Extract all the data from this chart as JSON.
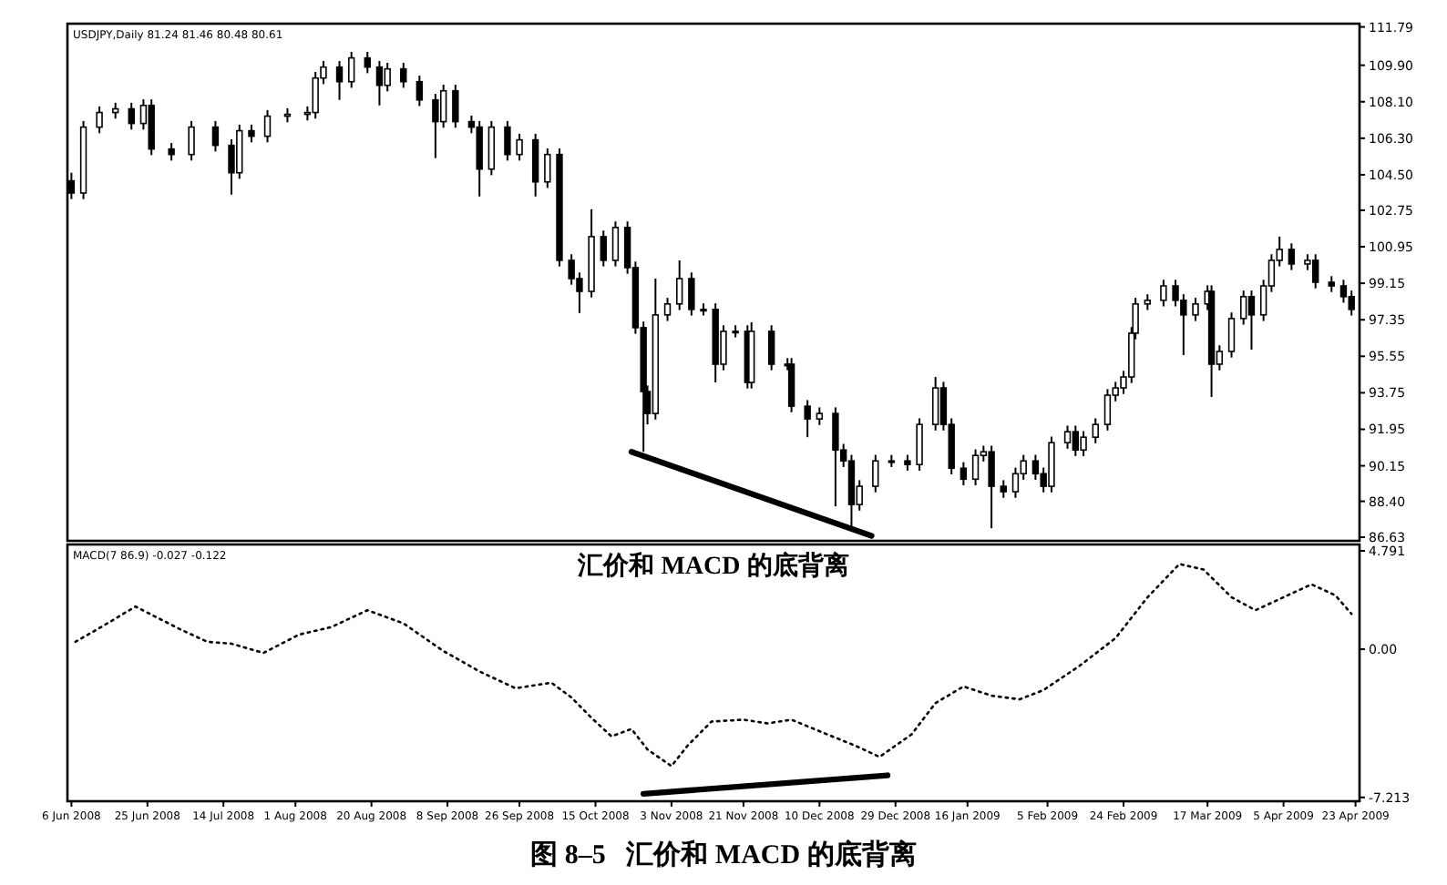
{
  "chart_data": [
    {
      "type": "candlestick",
      "color": "#000000",
      "tick_labels": "y",
      "grid": false,
      "xlim": [
        "2008-06-05",
        "2009-04-24"
      ],
      "ylim": [
        86.45,
        111.95
      ],
      "yticks": [
        111.79,
        {
          "value": 109.9,
          "label": "109.90"
        },
        {
          "value": 108.1,
          "label": "108.10"
        },
        {
          "value": 106.3,
          "label": "106.30"
        },
        {
          "value": 104.5,
          "label": "104.50"
        },
        102.75,
        100.95,
        99.15,
        97.35,
        95.55,
        93.75,
        91.95,
        90.15,
        {
          "value": 88.4,
          "label": "88.40"
        },
        86.63
      ],
      "annotations": [
        "USDJPY,Daily  81.24 81.46 80.48 80.61"
      ],
      "x": [
        "2008-06-06",
        "2008-06-09",
        "2008-06-13",
        "2008-06-17",
        "2008-06-21",
        "2008-06-24",
        "2008-06-26",
        "2008-07-01",
        "2008-07-06",
        "2008-07-12",
        "2008-07-16",
        "2008-07-18",
        "2008-07-21",
        "2008-07-25",
        "2008-07-30",
        "2008-08-04",
        "2008-08-06",
        "2008-08-08",
        "2008-08-12",
        "2008-08-15",
        "2008-08-19",
        "2008-08-22",
        "2008-08-24",
        "2008-08-28",
        "2008-09-01",
        "2008-09-05",
        "2008-09-07",
        "2008-09-10",
        "2008-09-14",
        "2008-09-16",
        "2008-09-19",
        "2008-09-23",
        "2008-09-26",
        "2008-09-30",
        "2008-10-03",
        "2008-10-06",
        "2008-10-09",
        "2008-10-11",
        "2008-10-14",
        "2008-10-17",
        "2008-10-20",
        "2008-10-23",
        "2008-10-25",
        "2008-10-27",
        "2008-10-28",
        "2008-10-30",
        "2008-11-02",
        "2008-11-05",
        "2008-11-08",
        "2008-11-11",
        "2008-11-14",
        "2008-11-16",
        "2008-11-19",
        "2008-11-22",
        "2008-11-23",
        "2008-11-28",
        "2008-12-02",
        "2008-12-03",
        "2008-12-07",
        "2008-12-10",
        "2008-12-14",
        "2008-12-16",
        "2008-12-18",
        "2008-12-20",
        "2008-12-24",
        "2008-12-28",
        "2009-01-01",
        "2009-01-04",
        "2009-01-08",
        "2009-01-10",
        "2009-01-12",
        "2009-01-15",
        "2009-01-18",
        "2009-01-20",
        "2009-01-22",
        "2009-01-25",
        "2009-01-28",
        "2009-01-30",
        "2009-02-02",
        "2009-02-04",
        "2009-02-06",
        "2009-02-10",
        "2009-02-12",
        "2009-02-14",
        "2009-02-17",
        "2009-02-20",
        "2009-02-22",
        "2009-02-24",
        "2009-02-26",
        "2009-02-27",
        "2009-03-02",
        "2009-03-06",
        "2009-03-09",
        "2009-03-11",
        "2009-03-14",
        "2009-03-17",
        "2009-03-18",
        "2009-03-20",
        "2009-03-23",
        "2009-03-26",
        "2009-03-28",
        "2009-03-31",
        "2009-04-02",
        "2009-04-04",
        "2009-04-07",
        "2009-04-11",
        "2009-04-13",
        "2009-04-17",
        "2009-04-20",
        "2009-04-22"
      ],
      "ohlc": [
        [
          104.2,
          104.6,
          103.3,
          103.6
        ],
        [
          103.6,
          107.15,
          103.3,
          106.85
        ],
        [
          106.85,
          107.87,
          106.55,
          107.57
        ],
        [
          107.57,
          108.05,
          107.27,
          107.75
        ],
        [
          107.75,
          108.05,
          106.73,
          107.03
        ],
        [
          107.03,
          108.22,
          106.73,
          107.92
        ],
        [
          107.92,
          108.22,
          105.47,
          105.77
        ],
        [
          105.77,
          106.07,
          105.2,
          105.5
        ],
        [
          105.5,
          107.15,
          105.2,
          106.85
        ],
        [
          106.85,
          107.15,
          105.65,
          105.95
        ],
        [
          105.95,
          106.25,
          103.52,
          104.6
        ],
        [
          104.6,
          106.97,
          104.3,
          106.67
        ],
        [
          106.67,
          106.97,
          106.1,
          106.4
        ],
        [
          106.4,
          107.69,
          106.1,
          107.39
        ],
        [
          107.39,
          107.78,
          107.09,
          107.48
        ],
        [
          107.48,
          107.87,
          107.18,
          107.57
        ],
        [
          107.57,
          109.57,
          107.27,
          109.27
        ],
        [
          109.27,
          110.11,
          108.97,
          109.81
        ],
        [
          109.81,
          110.11,
          108.19,
          109.09
        ],
        [
          109.09,
          110.56,
          108.79,
          110.26
        ],
        [
          110.26,
          110.56,
          109.51,
          109.81
        ],
        [
          109.81,
          110.11,
          107.92,
          108.91
        ],
        [
          108.91,
          110.02,
          108.61,
          109.72
        ],
        [
          109.72,
          110.02,
          108.79,
          109.09
        ],
        [
          109.09,
          109.39,
          107.89,
          108.19
        ],
        [
          108.19,
          108.49,
          105.32,
          107.12
        ],
        [
          107.12,
          108.94,
          106.82,
          108.64
        ],
        [
          108.64,
          108.94,
          106.82,
          107.12
        ],
        [
          107.12,
          107.42,
          106.55,
          106.85
        ],
        [
          106.85,
          107.15,
          103.43,
          104.78
        ],
        [
          104.78,
          107.15,
          104.48,
          106.85
        ],
        [
          106.85,
          107.15,
          105.2,
          105.5
        ],
        [
          105.5,
          106.52,
          105.2,
          106.22
        ],
        [
          106.22,
          106.52,
          103.43,
          104.15
        ],
        [
          104.15,
          105.8,
          103.85,
          105.5
        ],
        [
          105.5,
          105.8,
          99.98,
          100.28
        ],
        [
          100.28,
          100.58,
          99.08,
          99.38
        ],
        [
          99.38,
          99.68,
          97.68,
          98.75
        ],
        [
          98.75,
          102.8,
          98.45,
          101.45
        ],
        [
          101.45,
          101.75,
          99.98,
          100.28
        ],
        [
          100.28,
          102.2,
          99.98,
          101.9
        ],
        [
          101.9,
          102.2,
          99.62,
          99.92
        ],
        [
          99.92,
          100.22,
          96.66,
          96.96
        ],
        [
          96.96,
          97.26,
          90.84,
          93.81
        ],
        [
          93.81,
          94.11,
          92.19,
          92.73
        ],
        [
          92.73,
          99.38,
          92.43,
          97.59
        ],
        [
          97.59,
          98.43,
          97.29,
          98.13
        ],
        [
          98.13,
          100.28,
          97.83,
          99.38
        ],
        [
          99.38,
          99.68,
          97.56,
          97.86
        ],
        [
          97.86,
          98.16,
          97.56,
          97.86
        ],
        [
          97.86,
          98.16,
          94.26,
          95.16
        ],
        [
          95.16,
          97.08,
          94.86,
          96.78
        ],
        [
          96.78,
          97.08,
          96.48,
          96.78
        ],
        [
          96.78,
          97.08,
          93.96,
          94.26
        ],
        [
          94.26,
          97.23,
          93.96,
          96.78
        ],
        [
          96.78,
          97.08,
          94.86,
          95.16
        ],
        [
          95.16,
          95.46,
          94.86,
          95.16
        ],
        [
          95.16,
          95.46,
          92.79,
          93.09
        ],
        [
          93.09,
          93.39,
          91.56,
          92.46
        ],
        [
          92.46,
          93.03,
          92.16,
          92.73
        ],
        [
          92.73,
          93.03,
          88.15,
          90.93
        ],
        [
          90.93,
          91.23,
          90.09,
          90.39
        ],
        [
          90.39,
          90.69,
          87.07,
          88.24
        ],
        [
          88.24,
          89.44,
          87.94,
          89.14
        ],
        [
          89.14,
          90.69,
          88.84,
          90.39
        ],
        [
          90.39,
          90.69,
          90.09,
          90.39
        ],
        [
          90.39,
          90.69,
          89.91,
          90.21
        ],
        [
          90.21,
          92.49,
          89.91,
          92.19
        ],
        [
          92.19,
          94.53,
          91.89,
          93.99
        ],
        [
          93.99,
          94.29,
          91.89,
          92.19
        ],
        [
          92.19,
          92.49,
          89.73,
          90.03
        ],
        [
          90.03,
          90.33,
          89.19,
          89.49
        ],
        [
          89.49,
          90.96,
          89.19,
          90.66
        ],
        [
          90.66,
          91.14,
          90.36,
          90.84
        ],
        [
          90.84,
          91.14,
          87.07,
          89.14
        ],
        [
          89.14,
          89.44,
          88.57,
          88.87
        ],
        [
          88.87,
          90.06,
          88.57,
          89.76
        ],
        [
          89.76,
          90.69,
          89.46,
          90.39
        ],
        [
          90.39,
          90.69,
          89.46,
          89.76
        ],
        [
          89.76,
          90.06,
          88.84,
          89.14
        ],
        [
          89.14,
          91.59,
          88.84,
          91.29
        ],
        [
          91.29,
          92.13,
          90.99,
          91.83
        ],
        [
          91.83,
          92.13,
          90.63,
          90.93
        ],
        [
          90.93,
          91.86,
          90.63,
          91.56
        ],
        [
          91.56,
          92.49,
          91.26,
          92.19
        ],
        [
          92.19,
          93.93,
          91.89,
          93.63
        ],
        [
          93.63,
          94.29,
          93.33,
          93.99
        ],
        [
          93.99,
          94.83,
          93.69,
          94.53
        ],
        [
          94.53,
          96.99,
          94.23,
          96.69
        ],
        [
          96.69,
          98.43,
          96.39,
          98.13
        ],
        [
          98.13,
          98.61,
          97.83,
          98.31
        ],
        [
          98.31,
          99.32,
          98.01,
          99.02
        ],
        [
          99.02,
          99.32,
          98.01,
          98.31
        ],
        [
          98.31,
          98.61,
          95.61,
          97.59
        ],
        [
          97.59,
          98.43,
          97.29,
          98.13
        ],
        [
          98.13,
          99.05,
          97.83,
          98.75
        ],
        [
          98.75,
          99.05,
          93.54,
          95.16
        ],
        [
          95.16,
          96.09,
          94.86,
          95.79
        ],
        [
          95.79,
          97.71,
          95.49,
          97.41
        ],
        [
          97.41,
          98.79,
          97.11,
          98.49
        ],
        [
          98.49,
          98.79,
          95.88,
          97.59
        ],
        [
          97.59,
          99.32,
          97.29,
          99.02
        ],
        [
          99.02,
          100.58,
          98.72,
          100.28
        ],
        [
          100.28,
          101.45,
          99.98,
          100.82
        ],
        [
          100.82,
          101.12,
          99.8,
          100.1
        ],
        [
          100.1,
          100.58,
          99.8,
          100.28
        ],
        [
          100.28,
          100.58,
          98.9,
          99.2
        ],
        [
          99.2,
          99.5,
          98.72,
          99.02
        ],
        [
          99.02,
          99.32,
          98.19,
          98.49
        ],
        [
          98.49,
          98.79,
          97.56,
          97.86
        ]
      ],
      "series": [
        {
          "type": "line",
          "color": "#000000",
          "line_style": "solid",
          "x": [
            "2008-10-24",
            "2008-12-23"
          ],
          "values": [
            90.84,
            86.7
          ]
        }
      ]
    },
    {
      "type": "line",
      "grid": false,
      "title": "图 8–5   汇价和 MACD 的底背离",
      "annotations": [
        "MACD(7 86.9) -0.027 -0.122",
        "汇价和 MACD 的底背离"
      ],
      "xlim": [
        "2008-06-05",
        "2009-04-24"
      ],
      "ylim": [
        -7.4,
        5.1
      ],
      "yticks": [
        4.791,
        {
          "value": 0,
          "label": "0.00"
        },
        -7.213
      ],
      "xticks": [
        {
          "value": "2008-06-06",
          "label": "6 Jun 2008"
        },
        {
          "value": "2008-06-25",
          "label": "25 Jun 2008"
        },
        {
          "value": "2008-07-14",
          "label": "14 Jul 2008"
        },
        {
          "value": "2008-08-01",
          "label": "1 Aug 2008"
        },
        {
          "value": "2008-08-20",
          "label": "20 Aug 2008"
        },
        {
          "value": "2008-09-08",
          "label": "8 Sep 2008"
        },
        {
          "value": "2008-09-26",
          "label": "26 Sep 2008"
        },
        {
          "value": "2008-10-15",
          "label": "15 Oct 2008"
        },
        {
          "value": "2008-11-03",
          "label": "3 Nov 2008"
        },
        {
          "value": "2008-11-21",
          "label": "21 Nov 2008"
        },
        {
          "value": "2008-12-10",
          "label": "10 Dec 2008"
        },
        {
          "value": "2008-12-29",
          "label": "29 Dec 2008"
        },
        {
          "value": "2009-01-16",
          "label": "16 Jan 2009"
        },
        {
          "value": "2009-02-05",
          "label": "5 Feb 2009"
        },
        {
          "value": "2009-02-24",
          "label": "24 Feb 2009"
        },
        {
          "value": "2009-03-17",
          "label": "17 Mar 2009"
        },
        {
          "value": "2009-04-05",
          "label": "5 Apr 2009"
        },
        {
          "value": "2009-04-23",
          "label": "23 Apr 2009"
        }
      ],
      "series": [
        {
          "color": "#000000",
          "line_style": "dotted",
          "x": [
            "2008-06-07",
            "2008-06-15",
            "2008-06-22",
            "2008-07-03",
            "2008-07-10",
            "2008-07-16",
            "2008-07-24",
            "2008-08-02",
            "2008-08-10",
            "2008-08-19",
            "2008-08-28",
            "2008-09-07",
            "2008-09-16",
            "2008-09-25",
            "2008-10-04",
            "2008-10-09",
            "2008-10-14",
            "2008-10-19",
            "2008-10-24",
            "2008-10-28",
            "2008-11-03",
            "2008-11-07",
            "2008-11-13",
            "2008-11-21",
            "2008-11-27",
            "2008-12-03",
            "2008-12-12",
            "2008-12-19",
            "2008-12-25",
            "2009-01-02",
            "2009-01-08",
            "2009-01-15",
            "2009-01-22",
            "2009-01-29",
            "2009-02-04",
            "2009-02-13",
            "2009-02-22",
            "2009-03-02",
            "2009-03-10",
            "2009-03-16",
            "2009-03-23",
            "2009-03-29",
            "2009-04-06",
            "2009-04-12",
            "2009-04-18",
            "2009-04-22"
          ],
          "values": [
            0.36,
            1.26,
            2.08,
            0.99,
            0.36,
            0.27,
            -0.18,
            0.72,
            1.08,
            1.9,
            1.26,
            -0.09,
            -1.08,
            -1.9,
            -1.63,
            -2.35,
            -3.34,
            -4.24,
            -3.88,
            -4.88,
            -5.69,
            -4.7,
            -3.52,
            -3.43,
            -3.61,
            -3.43,
            -4.15,
            -4.7,
            -5.24,
            -4.15,
            -2.62,
            -1.81,
            -2.26,
            -2.44,
            -1.99,
            -0.81,
            0.54,
            2.53,
            4.15,
            3.88,
            2.53,
            1.9,
            2.62,
            3.16,
            2.62,
            1.72
          ]
        },
        {
          "color": "#000000",
          "line_style": "solid",
          "x": [
            "2008-10-27",
            "2008-12-27"
          ],
          "values": [
            -7.04,
            -6.14
          ]
        }
      ]
    }
  ]
}
